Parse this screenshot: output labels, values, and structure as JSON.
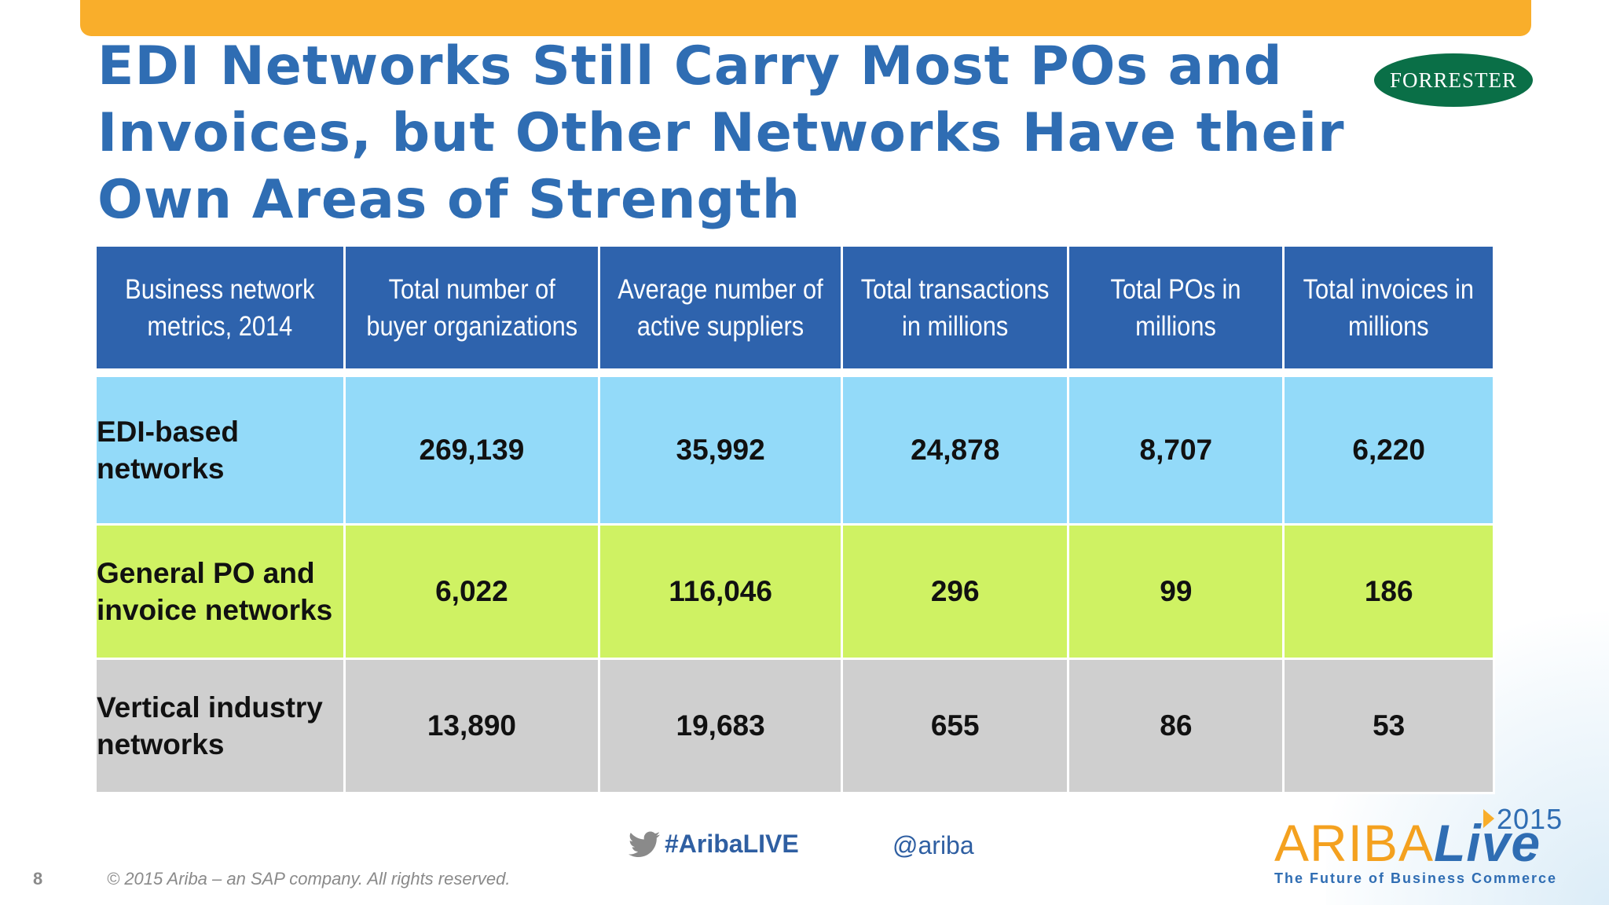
{
  "slide": {
    "title": "EDI Networks Still Carry Most POs and Invoices, but Other Networks Have their Own Areas of Strength",
    "page_number": "8",
    "copyright": "© 2015 Ariba – an SAP company. All rights reserved."
  },
  "forrester_logo": {
    "text": "FORRESTER"
  },
  "table": {
    "headers": [
      "Business network metrics, 2014",
      "Total number of buyer organizations",
      "Average number of active suppliers",
      "Total transactions in millions",
      "Total POs in millions",
      "Total invoices in millions"
    ],
    "rows": [
      {
        "label": "EDI-based networks",
        "values": [
          "269,139",
          "35,992",
          "24,878",
          "8,707",
          "6,220"
        ]
      },
      {
        "label": "General PO and invoice networks",
        "values": [
          "6,022",
          "116,046",
          "296",
          "99",
          "186"
        ]
      },
      {
        "label": "Vertical industry networks",
        "values": [
          "13,890",
          "19,683",
          "655",
          "86",
          "53"
        ]
      }
    ]
  },
  "footer": {
    "hashtag": "#AribaLIVE",
    "handle": "@ariba",
    "twitter_icon": "twitter-bird-icon"
  },
  "ariba_logo": {
    "word_part1": "ARIBA",
    "word_part2": "Live",
    "year": "2015",
    "tagline": "The Future of Business Commerce"
  },
  "colors": {
    "accent_bar": "#f9ae2b",
    "title_blue": "#2f6db3",
    "header_blue": "#2e63ad",
    "edi_row": "#93daf9",
    "general_row": "#cff263",
    "vertical_row": "#cfcfcf",
    "forrester_green": "#0a6f47"
  }
}
